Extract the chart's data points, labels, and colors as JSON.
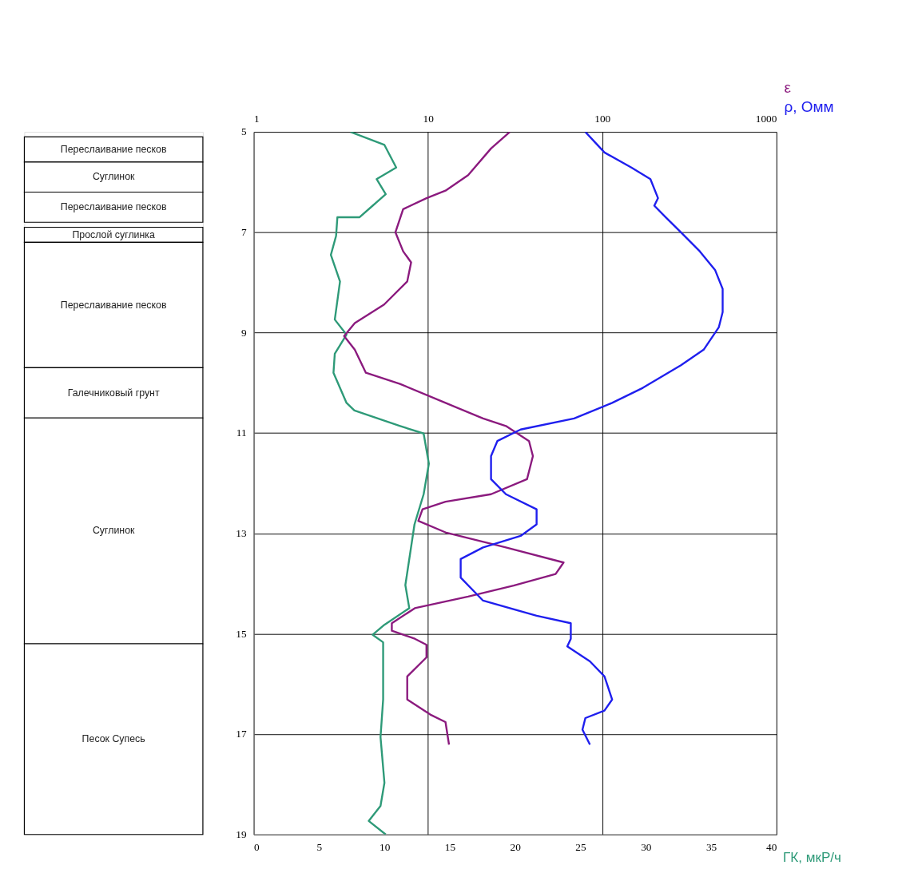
{
  "chart_data": [
    {
      "type": "bar",
      "categories": [
        null
      ],
      "ylim": [
        19,
        5
      ],
      "tick_labels": false,
      "series": [
        {
          "name": "Переслаивание песков",
          "color": "#ffffff",
          "base": [
            5.1
          ],
          "values": [
            0.5
          ]
        },
        {
          "name": "Суглинок",
          "color": "#ffffff",
          "base": [
            5.6
          ],
          "values": [
            0.6
          ]
        },
        {
          "name": "Переслаивание песков",
          "color": "#ffffff",
          "base": [
            6.2
          ],
          "values": [
            0.6
          ]
        },
        {
          "name": "Прослой суглинка",
          "color": "#ffffff",
          "base": [
            6.9
          ],
          "values": [
            0.3
          ]
        },
        {
          "name": "Переслаивание песков",
          "color": "#ffffff",
          "base": [
            7.2
          ],
          "values": [
            2.5
          ]
        },
        {
          "name": "Галечниковый грунт",
          "color": "#ffffff",
          "base": [
            9.7
          ],
          "values": [
            1.0
          ]
        },
        {
          "name": "Суглинок",
          "color": "#ffffff",
          "base": [
            10.7
          ],
          "values": [
            4.5
          ]
        },
        {
          "name": "Песок Супесь",
          "color": "#ffffff",
          "base": [
            15.2
          ],
          "values": [
            3.8
          ]
        }
      ]
    },
    {
      "type": "line",
      "xlabel": "ГК, мкР/ч",
      "ylim": [
        19,
        5
      ],
      "yticks": [
        5,
        7,
        9,
        11,
        13,
        15,
        17,
        19
      ],
      "xlim": [
        0,
        40
      ],
      "xticks": [
        0,
        5,
        10,
        15,
        20,
        25,
        30,
        35,
        40
      ],
      "x2lim": [
        1,
        1000
      ],
      "x2ticks": [
        1,
        10,
        100,
        1000
      ],
      "log": "x2",
      "grid": true,
      "series": [
        {
          "color": "#2e9a78",
          "x": [
            7.4,
            10.0,
            10.9,
            9.4,
            10.1,
            9.1,
            8.1,
            6.4,
            6.3,
            5.9,
            6.6,
            6.2,
            7.1,
            6.2,
            6.1,
            7.1,
            7.7,
            11.2,
            13.0,
            13.4,
            13.0,
            12.3,
            11.6,
            11.9,
            10.0,
            9.1,
            9.9,
            9.9,
            9.7,
            10.0,
            9.7,
            8.8,
            10.1
          ],
          "values": [
            5.0,
            5.26,
            5.71,
            5.94,
            6.24,
            6.47,
            6.7,
            6.7,
            7.07,
            7.45,
            7.98,
            8.74,
            9.04,
            9.42,
            9.8,
            10.4,
            10.55,
            10.86,
            11.01,
            11.61,
            12.22,
            12.82,
            14.03,
            14.49,
            14.82,
            15.02,
            15.17,
            16.31,
            17.06,
            17.97,
            18.43,
            18.73,
            19.0
          ]
        },
        {
          "name": "ε",
          "color": "#8b1a7e",
          "axis": "x2",
          "x": [
            29.5,
            23,
            17,
            12.6,
            9.8,
            7.2,
            6.5,
            7.2,
            8.0,
            7.6,
            5.6,
            3.8,
            3.3,
            3.8,
            4.4,
            6.9,
            12.6,
            20.7,
            28,
            38,
            40,
            37,
            23,
            12.6,
            9.3,
            8.8,
            12.6,
            28,
            60,
            54,
            31,
            17,
            8.4,
            6.2,
            6.2,
            8.4,
            9.8,
            9.8,
            7.6,
            7.6,
            10.3,
            12.6,
            13.2
          ],
          "values": [
            5.0,
            5.33,
            5.86,
            6.17,
            6.32,
            6.54,
            7.0,
            7.38,
            7.6,
            7.98,
            8.44,
            8.81,
            9.07,
            9.34,
            9.8,
            10.02,
            10.4,
            10.71,
            10.86,
            11.16,
            11.46,
            11.92,
            12.22,
            12.37,
            12.52,
            12.75,
            12.98,
            13.28,
            13.58,
            13.81,
            14.04,
            14.26,
            14.49,
            14.79,
            14.94,
            15.1,
            15.22,
            15.47,
            15.85,
            16.31,
            16.61,
            16.76,
            17.21
          ]
        },
        {
          "name": "ρ, Омм",
          "color": "#1f1fee",
          "axis": "x2",
          "x": [
            80,
            103,
            147,
            189,
            209,
            199,
            231,
            283,
            363,
            444,
            491,
            491,
            467,
            382,
            283,
            171,
            114,
            69,
            34,
            25,
            23,
            23,
            28,
            42,
            42,
            34,
            20.7,
            15.4,
            15.4,
            20.7,
            42,
            66,
            66,
            63,
            85,
            103,
            114,
            103,
            80,
            77,
            85
          ],
          "values": [
            5.0,
            5.41,
            5.71,
            5.94,
            6.32,
            6.47,
            6.7,
            7.0,
            7.38,
            7.75,
            8.13,
            8.59,
            8.89,
            9.34,
            9.65,
            10.1,
            10.4,
            10.71,
            10.93,
            11.16,
            11.46,
            11.92,
            12.22,
            12.52,
            12.82,
            13.05,
            13.28,
            13.51,
            13.88,
            14.34,
            14.64,
            14.79,
            15.1,
            15.25,
            15.55,
            15.85,
            16.31,
            16.53,
            16.68,
            16.91,
            17.21
          ]
        }
      ]
    }
  ]
}
